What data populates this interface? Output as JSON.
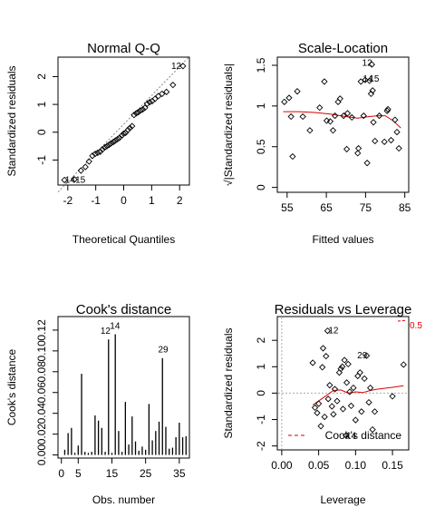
{
  "chart_data": [
    {
      "type": "scatter",
      "title": "Normal Q-Q",
      "xlabel": "Theoretical Quantiles",
      "ylabel": "Standardized residuals",
      "xlim": [
        -2.35,
        2.35
      ],
      "ylim": [
        -1.9,
        2.7
      ],
      "xticks": [
        -2,
        -1,
        0,
        1,
        2
      ],
      "yticks": [
        -1,
        0,
        1,
        2
      ],
      "reference_line": [
        [
          -2.35,
          -2.15
        ],
        [
          2.35,
          2.72
        ]
      ],
      "points": [
        [
          -2.12,
          -1.72
        ],
        [
          -1.76,
          -1.7
        ],
        [
          -1.53,
          -1.38
        ],
        [
          -1.37,
          -1.25
        ],
        [
          -1.24,
          -1.05
        ],
        [
          -1.12,
          -0.85
        ],
        [
          -1.02,
          -0.78
        ],
        [
          -0.93,
          -0.74
        ],
        [
          -0.84,
          -0.7
        ],
        [
          -0.76,
          -0.62
        ],
        [
          -0.68,
          -0.55
        ],
        [
          -0.6,
          -0.5
        ],
        [
          -0.52,
          -0.45
        ],
        [
          -0.45,
          -0.4
        ],
        [
          -0.37,
          -0.35
        ],
        [
          -0.3,
          -0.3
        ],
        [
          -0.22,
          -0.25
        ],
        [
          -0.15,
          -0.2
        ],
        [
          -0.07,
          -0.12
        ],
        [
          0.0,
          -0.05
        ],
        [
          0.07,
          -0.02
        ],
        [
          0.15,
          0.08
        ],
        [
          0.22,
          0.15
        ],
        [
          0.3,
          0.22
        ],
        [
          0.37,
          0.62
        ],
        [
          0.45,
          0.68
        ],
        [
          0.52,
          0.72
        ],
        [
          0.6,
          0.78
        ],
        [
          0.68,
          0.82
        ],
        [
          0.76,
          0.88
        ],
        [
          0.84,
          1.02
        ],
        [
          0.93,
          1.08
        ],
        [
          1.02,
          1.12
        ],
        [
          1.12,
          1.2
        ],
        [
          1.24,
          1.3
        ],
        [
          1.37,
          1.38
        ],
        [
          1.53,
          1.45
        ],
        [
          1.76,
          1.7
        ],
        [
          2.12,
          2.38
        ]
      ],
      "point_labels": [
        {
          "text": "12",
          "x": 1.88,
          "y": 2.38
        },
        {
          "text": "14",
          "x": -1.92,
          "y": -1.72
        },
        {
          "text": "15",
          "x": -1.55,
          "y": -1.72
        }
      ]
    },
    {
      "type": "scatter",
      "title": "Scale-Location",
      "xlabel": "Fitted values",
      "ylabel": "√|Standardized residuals|",
      "xlim": [
        52.5,
        86
      ],
      "ylim": [
        -0.06,
        1.6
      ],
      "xticks": [
        55,
        65,
        75,
        85
      ],
      "yticks": [
        0.0,
        0.5,
        1.0,
        1.5
      ],
      "points": [
        [
          54.3,
          1.05
        ],
        [
          55.5,
          1.1
        ],
        [
          56.0,
          0.87
        ],
        [
          56.4,
          0.38
        ],
        [
          57.6,
          1.18
        ],
        [
          59.0,
          0.87
        ],
        [
          60.8,
          0.7
        ],
        [
          63.3,
          0.98
        ],
        [
          64.5,
          1.3
        ],
        [
          65.1,
          0.82
        ],
        [
          66.0,
          0.81
        ],
        [
          66.7,
          0.7
        ],
        [
          67.2,
          0.88
        ],
        [
          68.0,
          1.05
        ],
        [
          68.5,
          1.09
        ],
        [
          69.4,
          0.88
        ],
        [
          70.4,
          0.91
        ],
        [
          70.2,
          0.47
        ],
        [
          71.5,
          0.86
        ],
        [
          73.0,
          0.42
        ],
        [
          73.2,
          0.48
        ],
        [
          73.8,
          1.3
        ],
        [
          74.5,
          0.88
        ],
        [
          74.9,
          1.32
        ],
        [
          75.4,
          0.3
        ],
        [
          76.0,
          1.31
        ],
        [
          76.6,
          1.51
        ],
        [
          76.4,
          1.15
        ],
        [
          76.8,
          1.19
        ],
        [
          77.0,
          0.8
        ],
        [
          77.4,
          0.57
        ],
        [
          78.5,
          0.88
        ],
        [
          79.8,
          0.56
        ],
        [
          80.5,
          0.94
        ],
        [
          80.7,
          0.96
        ],
        [
          81.5,
          0.58
        ],
        [
          82.5,
          0.83
        ],
        [
          83.0,
          0.68
        ],
        [
          83.5,
          0.48
        ]
      ],
      "trend_line": [
        [
          54,
          0.93
        ],
        [
          58,
          0.93
        ],
        [
          62,
          0.92
        ],
        [
          66,
          0.9
        ],
        [
          70,
          0.87
        ],
        [
          73,
          0.85
        ],
        [
          76,
          0.87
        ],
        [
          78,
          0.88
        ],
        [
          80,
          0.88
        ],
        [
          82,
          0.82
        ],
        [
          84,
          0.73
        ]
      ],
      "point_labels": [
        {
          "text": "12",
          "x": 75.4,
          "y": 1.53
        },
        {
          "text": "14",
          "x": 75.6,
          "y": 1.33
        },
        {
          "text": "15",
          "x": 77.2,
          "y": 1.33
        }
      ]
    },
    {
      "type": "bar",
      "title": "Cook's distance",
      "xlabel": "Obs. number",
      "ylabel": "Cook's distance",
      "xlim": [
        -1,
        38
      ],
      "ylim": [
        -0.003,
        0.133
      ],
      "xticks": [
        0,
        5,
        15,
        25,
        35
      ],
      "yticks": [
        0.0,
        0.02,
        0.04,
        0.06,
        0.08,
        0.1,
        0.12
      ],
      "ytick_labels": [
        "0.00",
        "0.02",
        "0.04",
        "0.06",
        "0.08",
        "0.10",
        "0.12"
      ],
      "x": [
        1,
        2,
        3,
        4,
        5,
        6,
        7,
        8,
        9,
        10,
        11,
        12,
        13,
        14,
        15,
        16,
        17,
        18,
        19,
        20,
        21,
        22,
        23,
        24,
        25,
        26,
        27,
        28,
        29,
        30,
        31,
        32,
        33,
        34,
        35,
        36,
        37
      ],
      "values": [
        0.005,
        0.021,
        0.026,
        0.002,
        0.009,
        0.078,
        0.003,
        0.002,
        0.003,
        0.038,
        0.033,
        0.026,
        0.003,
        0.111,
        0.002,
        0.116,
        0.023,
        0.003,
        0.051,
        0.01,
        0.037,
        0.013,
        0.004,
        0.008,
        0.005,
        0.049,
        0.014,
        0.023,
        0.032,
        0.093,
        0.027,
        0.006,
        0.007,
        0.017,
        0.031,
        0.017,
        0.018
      ],
      "point_labels": [
        {
          "text": "12",
          "x": 13.1,
          "y": 0.119
        },
        {
          "text": "14",
          "x": 15.9,
          "y": 0.124
        },
        {
          "text": "29",
          "x": 30.2,
          "y": 0.101
        }
      ]
    },
    {
      "type": "scatter",
      "title": "Residuals vs Leverage",
      "xlabel": "Leverage",
      "ylabel": "Standardized residuals",
      "xlim": [
        -0.006,
        0.172
      ],
      "ylim": [
        -2.15,
        2.9
      ],
      "xticks": [
        0.0,
        0.05,
        0.1,
        0.15
      ],
      "xtick_labels": [
        "0.00",
        "0.05",
        "0.10",
        "0.15"
      ],
      "yticks": [
        -2,
        -1,
        0,
        1,
        2
      ],
      "points": [
        [
          0.042,
          1.15
        ],
        [
          0.045,
          -0.55
        ],
        [
          0.048,
          -0.75
        ],
        [
          0.05,
          -0.4
        ],
        [
          0.053,
          -1.25
        ],
        [
          0.055,
          0.98
        ],
        [
          0.056,
          1.7
        ],
        [
          0.058,
          -0.9
        ],
        [
          0.06,
          1.4
        ],
        [
          0.062,
          2.36
        ],
        [
          0.063,
          -0.22
        ],
        [
          0.065,
          0.3
        ],
        [
          0.068,
          -0.5
        ],
        [
          0.07,
          -0.8
        ],
        [
          0.072,
          0.15
        ],
        [
          0.075,
          -0.3
        ],
        [
          0.078,
          0.78
        ],
        [
          0.08,
          0.92
        ],
        [
          0.082,
          1.0
        ],
        [
          0.083,
          -0.6
        ],
        [
          0.085,
          1.25
        ],
        [
          0.087,
          -1.6
        ],
        [
          0.088,
          0.4
        ],
        [
          0.09,
          1.1
        ],
        [
          0.092,
          0.05
        ],
        [
          0.094,
          -0.48
        ],
        [
          0.097,
          0.2
        ],
        [
          0.1,
          -1.02
        ],
        [
          0.103,
          0.65
        ],
        [
          0.106,
          0.78
        ],
        [
          0.108,
          -0.7
        ],
        [
          0.112,
          0.55
        ],
        [
          0.115,
          1.42
        ],
        [
          0.118,
          -0.35
        ],
        [
          0.12,
          0.2
        ],
        [
          0.123,
          -1.38
        ],
        [
          0.126,
          -0.7
        ],
        [
          0.15,
          -0.12
        ],
        [
          0.165,
          1.08
        ]
      ],
      "trend_line": [
        [
          0.042,
          -0.45
        ],
        [
          0.05,
          -0.3
        ],
        [
          0.06,
          -0.1
        ],
        [
          0.07,
          0.1
        ],
        [
          0.08,
          0.12
        ],
        [
          0.09,
          0.0
        ],
        [
          0.1,
          0.05
        ],
        [
          0.11,
          0.02
        ],
        [
          0.12,
          0.1
        ],
        [
          0.13,
          0.15
        ],
        [
          0.15,
          0.22
        ],
        [
          0.165,
          0.28
        ]
      ],
      "point_labels": [
        {
          "text": "12",
          "x": 0.07,
          "y": 2.36
        },
        {
          "text": "29",
          "x": 0.109,
          "y": 1.42
        },
        {
          "text": "14",
          "x": 0.094,
          "y": -1.62
        }
      ],
      "contour_label": "0.5",
      "legend": {
        "label": "Cook's distance",
        "position": "bottom-right"
      }
    }
  ]
}
